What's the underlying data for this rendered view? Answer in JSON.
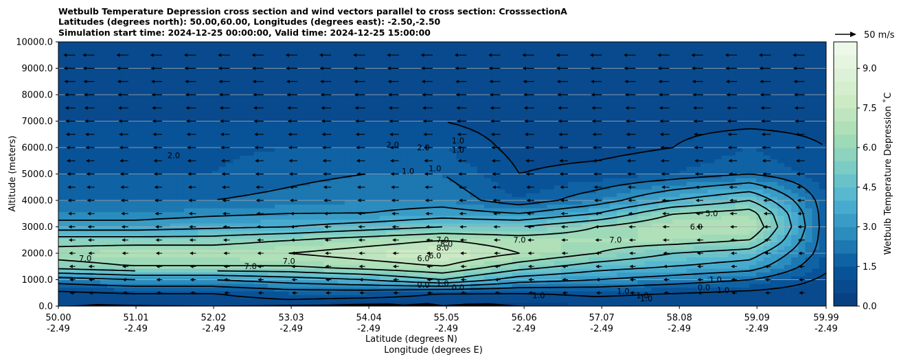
{
  "chart_data": {
    "type": "heatmap",
    "title_lines": [
      "Wetbulb Temperature Depression cross section and wind vectors parallel to cross section: CrosssectionA",
      "Latitudes (degrees north): 50.00,60.00, Longitudes (degrees east): -2.50,-2.50",
      "Simulation start time: 2024-12-25 00:00:00, Valid time: 2024-12-25 15:00:00"
    ],
    "ylabel": "Altitude (meters)",
    "xlabel_lines": [
      "Latitude (degrees N)",
      "Longitude (degrees E)"
    ],
    "ylim": [
      0,
      10000
    ],
    "y_ticks": [
      0,
      1000,
      2000,
      3000,
      4000,
      5000,
      6000,
      7000,
      8000,
      9000,
      10000
    ],
    "y_tick_labels": [
      "0.0",
      "1000.0",
      "2000.0",
      "3000.0",
      "4000.0",
      "5000.0",
      "6000.0",
      "7000.0",
      "8000.0",
      "9000.0",
      "10000.0"
    ],
    "xlim": [
      50.0,
      59.99
    ],
    "x_ticks": [
      50.0,
      51.01,
      52.02,
      53.03,
      54.04,
      55.05,
      56.06,
      57.07,
      58.08,
      59.09,
      59.99
    ],
    "x_tick_lat": [
      "50.00",
      "51.01",
      "52.02",
      "53.03",
      "54.04",
      "55.05",
      "56.06",
      "57.07",
      "58.08",
      "59.09",
      "59.99"
    ],
    "x_tick_lon": [
      "-2.49",
      "-2.49",
      "-2.49",
      "-2.49",
      "-2.49",
      "-2.49",
      "-2.49",
      "-2.49",
      "-2.49",
      "-2.49",
      "-2.49"
    ],
    "grid": "horizontal",
    "colorbar": {
      "label": "Wetbulb Temperature Depression ˚C",
      "range": [
        0,
        10
      ],
      "ticks": [
        0.0,
        1.5,
        3.0,
        4.5,
        6.0,
        7.5,
        9.0
      ],
      "tick_labels": [
        "0.0",
        "1.5",
        "3.0",
        "4.5",
        "6.0",
        "7.5",
        "9.0"
      ],
      "levels": 20,
      "colormap": "GnBu_r",
      "colors": [
        "#084081",
        "#08589e",
        "#2b8cbe",
        "#4eb3d3",
        "#7bccc4",
        "#a8ddb5",
        "#ccebc5",
        "#e0f3db",
        "#f7fcf0"
      ]
    },
    "wind_key": {
      "label": "50 m/s",
      "direction": "right"
    },
    "depression_field": {
      "x_lat": [
        50.0,
        51.0,
        52.0,
        53.0,
        54.0,
        55.0,
        56.0,
        57.0,
        58.0,
        59.0,
        59.99
      ],
      "z_m": [
        0,
        500,
        1000,
        1500,
        2000,
        2500,
        3000,
        3500,
        4000,
        5000,
        6000,
        7000,
        8000,
        9000,
        10000
      ],
      "values": [
        [
          0.5,
          0.8,
          2.5,
          5.5,
          6.5,
          5.5,
          3.5,
          2.5,
          2.0,
          1.5,
          1.2,
          1.0,
          0.8,
          0.8,
          0.8
        ],
        [
          0.5,
          1.0,
          3.0,
          6.0,
          6.8,
          5.5,
          3.5,
          2.5,
          2.0,
          1.5,
          1.3,
          1.0,
          0.8,
          0.8,
          0.8
        ],
        [
          0.5,
          1.0,
          3.0,
          6.0,
          6.8,
          5.5,
          3.8,
          2.8,
          2.0,
          1.5,
          1.4,
          1.0,
          0.8,
          0.8,
          0.8
        ],
        [
          0.5,
          1.5,
          3.5,
          6.0,
          7.0,
          6.0,
          4.0,
          3.0,
          2.2,
          1.8,
          1.5,
          1.0,
          0.8,
          0.8,
          0.8
        ],
        [
          0.2,
          1.5,
          4.0,
          6.5,
          7.5,
          6.5,
          4.5,
          3.0,
          2.5,
          2.0,
          1.5,
          1.0,
          0.8,
          0.8,
          0.8
        ],
        [
          0.5,
          1.0,
          5.0,
          7.0,
          8.0,
          7.0,
          5.0,
          3.5,
          2.5,
          2.0,
          1.5,
          1.0,
          0.8,
          0.8,
          0.8
        ],
        [
          0.2,
          1.0,
          3.5,
          5.5,
          7.0,
          6.5,
          5.0,
          3.0,
          1.5,
          1.0,
          0.8,
          0.7,
          0.6,
          0.6,
          0.6
        ],
        [
          0.5,
          1.2,
          3.0,
          4.5,
          6.0,
          6.5,
          6.0,
          4.0,
          2.5,
          1.2,
          0.8,
          0.7,
          0.6,
          0.6,
          0.6
        ],
        [
          0.5,
          1.0,
          2.5,
          4.0,
          5.0,
          6.5,
          7.0,
          6.0,
          4.0,
          1.5,
          1.0,
          0.8,
          0.6,
          0.6,
          0.6
        ],
        [
          0.5,
          0.8,
          2.0,
          3.5,
          4.5,
          6.0,
          7.0,
          6.5,
          5.0,
          2.0,
          1.5,
          0.8,
          0.6,
          0.6,
          0.6
        ],
        [
          0.5,
          0.5,
          0.8,
          1.2,
          1.5,
          1.5,
          1.5,
          1.5,
          1.5,
          1.2,
          1.0,
          0.8,
          0.6,
          0.6,
          0.6
        ]
      ]
    },
    "contour_labels": [
      "2.0",
      "2.0",
      "2.0",
      "1.0",
      "1.0",
      "1.0",
      "1.0",
      "7.0",
      "7.0",
      "7.0",
      "7.0",
      "7.0",
      "7.0",
      "8.0",
      "8.0",
      "6.0",
      "6.0",
      "0.0",
      "1.0",
      "0.0",
      "1.0",
      "1.0",
      "1.0",
      "1.0",
      "0.0",
      "1.0",
      "1.0",
      "5.0",
      "6.0"
    ],
    "wind_columns": [
      50.22,
      50.47,
      50.91,
      51.35,
      51.79,
      52.23,
      52.67,
      53.11,
      53.55,
      53.99,
      54.43,
      54.87,
      55.31,
      55.75,
      56.19,
      56.63,
      57.07,
      57.51,
      57.95,
      58.39,
      58.83,
      59.27,
      59.71
    ],
    "wind_levels_m": [
      500,
      1000,
      1500,
      2000,
      2500,
      3000,
      3500,
      4000,
      4500,
      5000,
      5500,
      6000,
      6500,
      7000,
      7500,
      8000,
      8500,
      9000,
      9500
    ],
    "wind_direction": "southward (leftward) at all points; speed increasing with altitude, strongest near 8000-9500 m"
  }
}
